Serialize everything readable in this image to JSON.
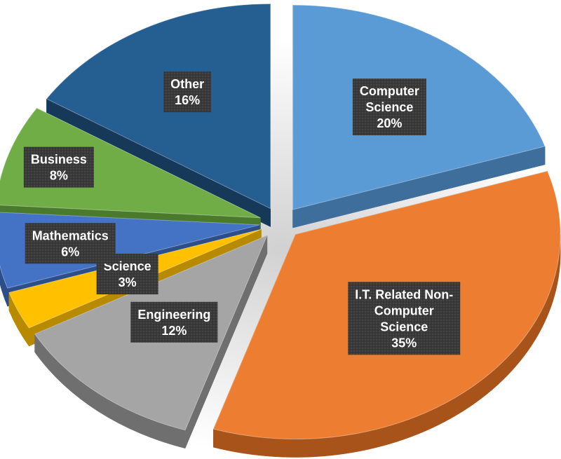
{
  "chart_data": {
    "type": "pie",
    "title": "",
    "start_angle_deg": 0,
    "slices": [
      {
        "label": "Computer Science",
        "label_lines": [
          "Computer",
          "Science"
        ],
        "value": 20,
        "display": "20%",
        "color": "#5B9BD5",
        "side_color": "#3E6E9C"
      },
      {
        "label": "I.T. Related Non-Computer Science",
        "label_lines": [
          "I.T. Related Non-",
          "Computer",
          "Science"
        ],
        "value": 35,
        "display": "35%",
        "color": "#ED7D31",
        "side_color": "#A8531A"
      },
      {
        "label": "Engineering",
        "label_lines": [
          "Engineering"
        ],
        "value": 12,
        "display": "12%",
        "color": "#A5A5A5",
        "side_color": "#6F6F6F"
      },
      {
        "label": "Science",
        "label_lines": [
          "Science"
        ],
        "value": 3,
        "display": "3%",
        "color": "#FFC000",
        "side_color": "#B88A00"
      },
      {
        "label": "Mathematics",
        "label_lines": [
          "Mathematics"
        ],
        "value": 6,
        "display": "6%",
        "color": "#4472C4",
        "side_color": "#2C4E8A"
      },
      {
        "label": "Business",
        "label_lines": [
          "Business"
        ],
        "value": 8,
        "display": "8%",
        "color": "#70AD47",
        "side_color": "#4A7A2C"
      },
      {
        "label": "Other",
        "label_lines": [
          "Other"
        ],
        "value": 16,
        "display": "16%",
        "color": "#255E91",
        "side_color": "#16395A"
      }
    ],
    "label_style": {
      "box_color": "#3A3A3A",
      "text_color": "#FFFFFF"
    },
    "legend": "none"
  }
}
